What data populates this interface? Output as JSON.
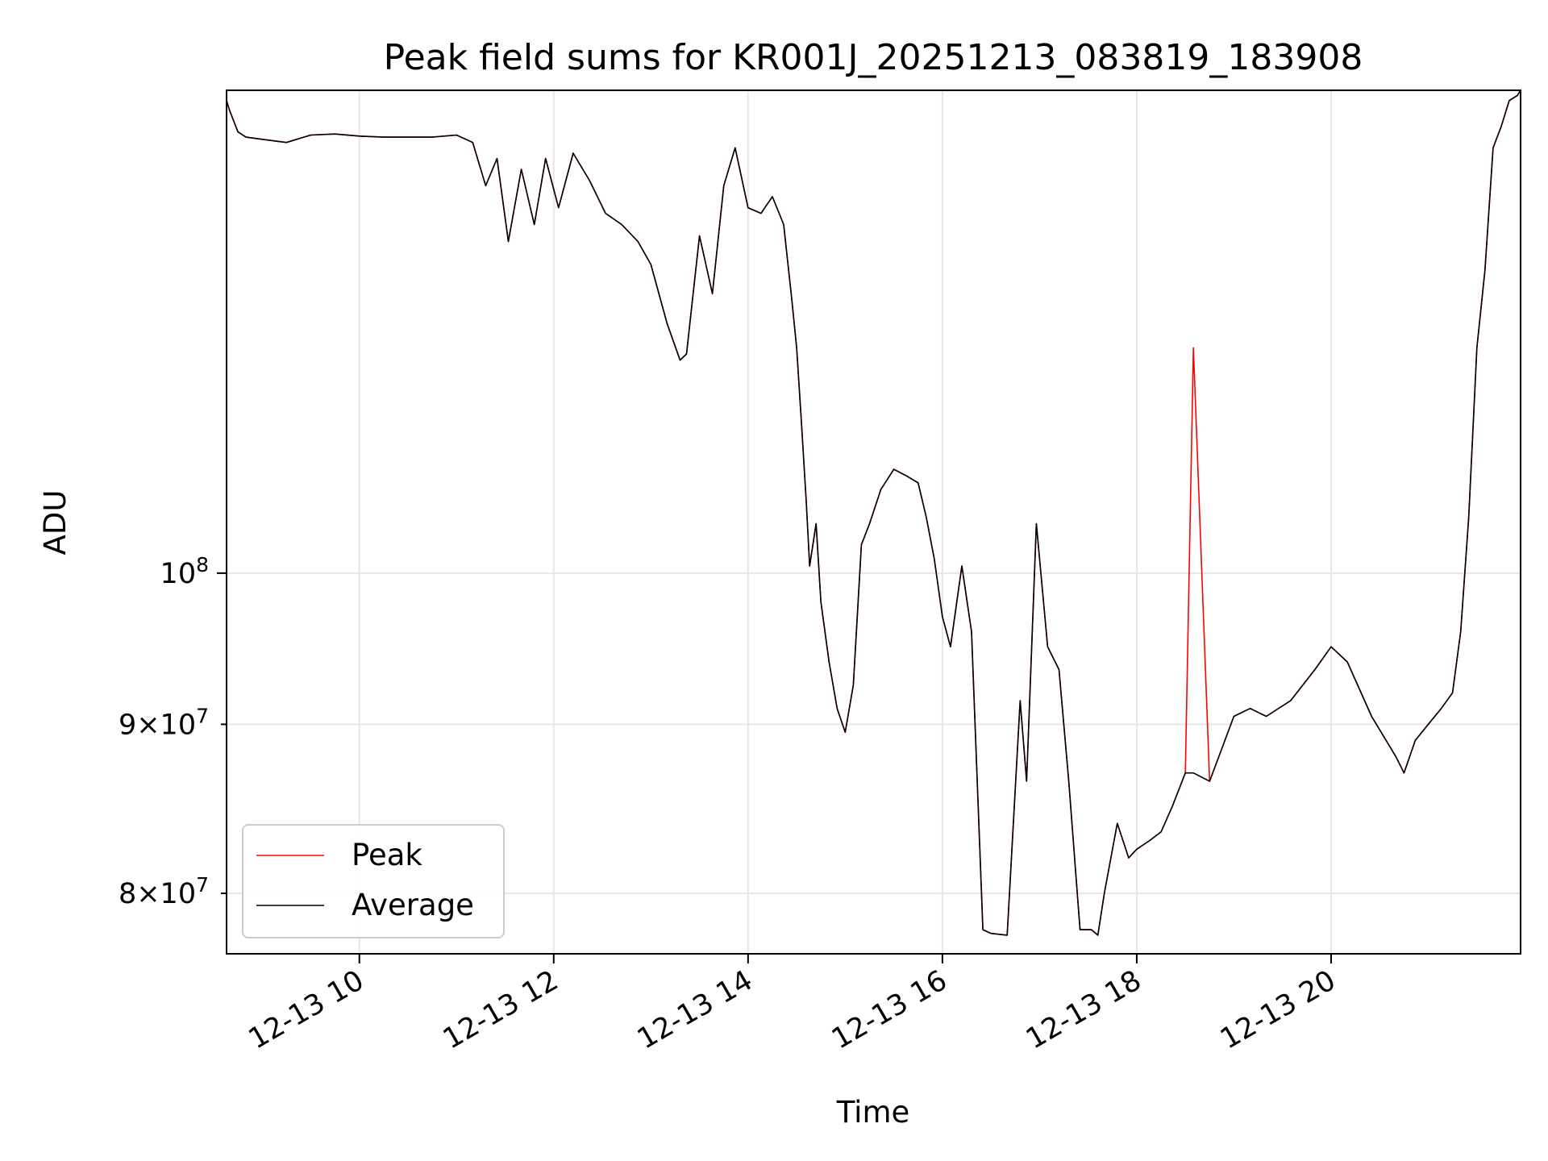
{
  "chart_data": {
    "type": "line",
    "title": "Peak field sums for KR001J_20251213_083819_183908",
    "xlabel": "Time",
    "ylabel": "ADU",
    "x_scale": "time",
    "y_scale": "log",
    "xlim": [
      "2025-12-13T08:38",
      "2025-12-13T21:57"
    ],
    "ylim": [
      76700000,
      140000000
    ],
    "grid": true,
    "legend_position": "lower-left",
    "x_ticks": [
      {
        "value": "2025-12-13T10:00",
        "label": "12-13 10"
      },
      {
        "value": "2025-12-13T12:00",
        "label": "12-13 12"
      },
      {
        "value": "2025-12-13T14:00",
        "label": "12-13 14"
      },
      {
        "value": "2025-12-13T16:00",
        "label": "12-13 16"
      },
      {
        "value": "2025-12-13T18:00",
        "label": "12-13 18"
      },
      {
        "value": "2025-12-13T20:00",
        "label": "12-13 20"
      }
    ],
    "y_ticks": [
      {
        "value": 80000000,
        "base": "8",
        "exp": "7",
        "kind": "minor"
      },
      {
        "value": 90000000,
        "base": "9",
        "exp": "7",
        "kind": "minor"
      },
      {
        "value": 100000000,
        "base": "10",
        "exp": "8",
        "kind": "major"
      }
    ],
    "series_colors": {
      "Peak": "#ff0000",
      "Average": "#000000"
    },
    "x": [
      "2025-12-13T08:38",
      "2025-12-13T08:40",
      "2025-12-13T08:45",
      "2025-12-13T08:50",
      "2025-12-13T09:00",
      "2025-12-13T09:15",
      "2025-12-13T09:30",
      "2025-12-13T09:45",
      "2025-12-13T10:00",
      "2025-12-13T10:15",
      "2025-12-13T10:30",
      "2025-12-13T10:45",
      "2025-12-13T11:00",
      "2025-12-13T11:10",
      "2025-12-13T11:18",
      "2025-12-13T11:25",
      "2025-12-13T11:32",
      "2025-12-13T11:40",
      "2025-12-13T11:48",
      "2025-12-13T11:55",
      "2025-12-13T12:03",
      "2025-12-13T12:12",
      "2025-12-13T12:22",
      "2025-12-13T12:32",
      "2025-12-13T12:42",
      "2025-12-13T12:52",
      "2025-12-13T13:00",
      "2025-12-13T13:10",
      "2025-12-13T13:18",
      "2025-12-13T13:22",
      "2025-12-13T13:30",
      "2025-12-13T13:38",
      "2025-12-13T13:45",
      "2025-12-13T13:52",
      "2025-12-13T14:00",
      "2025-12-13T14:08",
      "2025-12-13T14:15",
      "2025-12-13T14:22",
      "2025-12-13T14:27",
      "2025-12-13T14:30",
      "2025-12-13T14:33",
      "2025-12-13T14:36",
      "2025-12-13T14:38",
      "2025-12-13T14:42",
      "2025-12-13T14:45",
      "2025-12-13T14:50",
      "2025-12-13T14:55",
      "2025-12-13T15:00",
      "2025-12-13T15:05",
      "2025-12-13T15:10",
      "2025-12-13T15:15",
      "2025-12-13T15:22",
      "2025-12-13T15:30",
      "2025-12-13T15:38",
      "2025-12-13T15:45",
      "2025-12-13T15:50",
      "2025-12-13T15:55",
      "2025-12-13T16:00",
      "2025-12-13T16:05",
      "2025-12-13T16:12",
      "2025-12-13T16:18",
      "2025-12-13T16:25",
      "2025-12-13T16:30",
      "2025-12-13T16:40",
      "2025-12-13T16:48",
      "2025-12-13T16:52",
      "2025-12-13T16:58",
      "2025-12-13T17:05",
      "2025-12-13T17:12",
      "2025-12-13T17:18",
      "2025-12-13T17:25",
      "2025-12-13T17:32",
      "2025-12-13T17:36",
      "2025-12-13T17:40",
      "2025-12-13T17:48",
      "2025-12-13T17:55",
      "2025-12-13T18:00",
      "2025-12-13T18:08",
      "2025-12-13T18:15",
      "2025-12-13T18:22",
      "2025-12-13T18:30",
      "2025-12-13T18:35",
      "2025-12-13T18:45",
      "2025-12-13T19:00",
      "2025-12-13T19:10",
      "2025-12-13T19:20",
      "2025-12-13T19:35",
      "2025-12-13T19:50",
      "2025-12-13T20:00",
      "2025-12-13T20:10",
      "2025-12-13T20:25",
      "2025-12-13T20:40",
      "2025-12-13T20:45",
      "2025-12-13T20:52",
      "2025-12-13T21:00",
      "2025-12-13T21:08",
      "2025-12-13T21:15",
      "2025-12-13T21:20",
      "2025-12-13T21:25",
      "2025-12-13T21:30",
      "2025-12-13T21:35",
      "2025-12-13T21:40",
      "2025-12-13T21:45",
      "2025-12-13T21:50",
      "2025-12-13T21:55",
      "2025-12-13T21:57"
    ],
    "series": [
      {
        "name": "Peak",
        "values": [
          139000000,
          138000000,
          136000000,
          135500000,
          135300000,
          135000000,
          135700000,
          135800000,
          135600000,
          135500000,
          135500000,
          135500000,
          135700000,
          135000000,
          131000000,
          133500000,
          126000000,
          132500000,
          127500000,
          133500000,
          129000000,
          134000000,
          131500000,
          128500000,
          127500000,
          126000000,
          124000000,
          119000000,
          116000000,
          116500000,
          126500000,
          121500000,
          131000000,
          134500000,
          129000000,
          128500000,
          130000000,
          127500000,
          121000000,
          117000000,
          111000000,
          105000000,
          100500000,
          103500000,
          98000000,
          94000000,
          91000000,
          89500000,
          92500000,
          102000000,
          103500000,
          106000000,
          107500000,
          107000000,
          106500000,
          104000000,
          101000000,
          97000000,
          95000000,
          100500000,
          96000000,
          78000000,
          77800000,
          77700000,
          91500000,
          86500000,
          103500000,
          95000000,
          93500000,
          86500000,
          78000000,
          78000000,
          77700000,
          80000000,
          84000000,
          82000000,
          82500000,
          83000000,
          83500000,
          85000000,
          87000000,
          117000000,
          86500000,
          90500000,
          91000000,
          90500000,
          91500000,
          93500000,
          95000000,
          94000000,
          90500000,
          88000000,
          87000000,
          89000000,
          90000000,
          91000000,
          92000000,
          96000000,
          104000000,
          117000000,
          123500000,
          134500000,
          136500000,
          139000000,
          139500000,
          140000000
        ]
      },
      {
        "name": "Average",
        "values": [
          139000000,
          138000000,
          136000000,
          135500000,
          135300000,
          135000000,
          135700000,
          135800000,
          135600000,
          135500000,
          135500000,
          135500000,
          135700000,
          135000000,
          131000000,
          133500000,
          126000000,
          132500000,
          127500000,
          133500000,
          129000000,
          134000000,
          131500000,
          128500000,
          127500000,
          126000000,
          124000000,
          119000000,
          116000000,
          116500000,
          126500000,
          121500000,
          131000000,
          134500000,
          129000000,
          128500000,
          130000000,
          127500000,
          121000000,
          117000000,
          111000000,
          105000000,
          100500000,
          103500000,
          98000000,
          94000000,
          91000000,
          89500000,
          92500000,
          102000000,
          103500000,
          106000000,
          107500000,
          107000000,
          106500000,
          104000000,
          101000000,
          97000000,
          95000000,
          100500000,
          96000000,
          78000000,
          77800000,
          77700000,
          91500000,
          86500000,
          103500000,
          95000000,
          93500000,
          86500000,
          78000000,
          78000000,
          77700000,
          80000000,
          84000000,
          82000000,
          82500000,
          83000000,
          83500000,
          85000000,
          87000000,
          87000000,
          86500000,
          90500000,
          91000000,
          90500000,
          91500000,
          93500000,
          95000000,
          94000000,
          90500000,
          88000000,
          87000000,
          89000000,
          90000000,
          91000000,
          92000000,
          96000000,
          104000000,
          117000000,
          123500000,
          134500000,
          136500000,
          139000000,
          139500000,
          140000000
        ]
      }
    ]
  }
}
